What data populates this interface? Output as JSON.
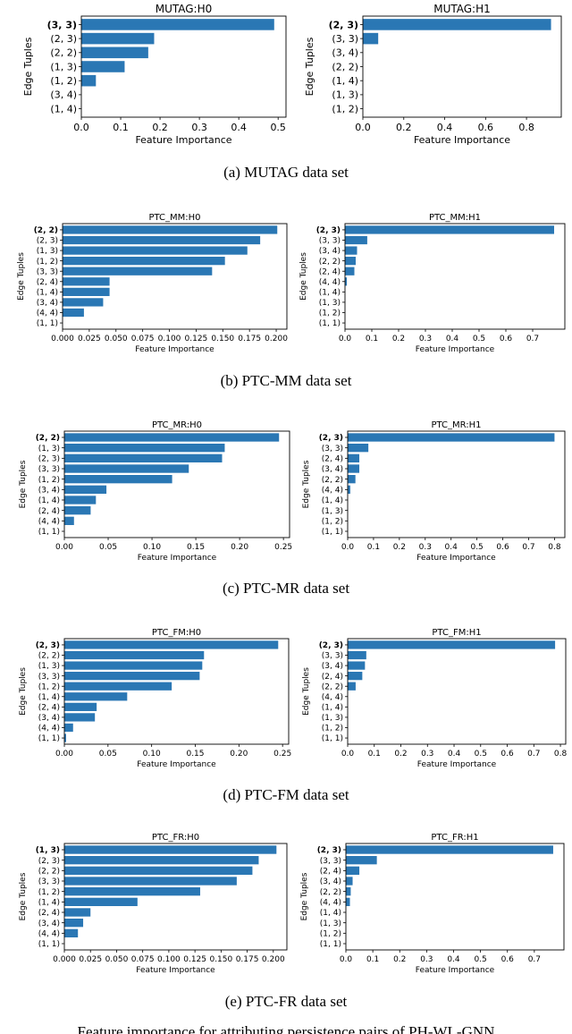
{
  "captions": [
    "(a) MUTAG data set",
    "(b) PTC-MM data set",
    "(c) PTC-MR data set",
    "(d) PTC-FM data set",
    "(e) PTC-FR data set"
  ],
  "footer_text": "Feature importance for attributing persistence pairs of PH-WL-GNN",
  "colors": {
    "bar": "#2a77b4",
    "axis": "#000000"
  },
  "chart_data": [
    {
      "type": "bar",
      "orientation": "horizontal",
      "title": "MUTAG:H0",
      "xlabel": "Feature Importance",
      "ylabel": "Edge Tuples",
      "categories": [
        "(3, 3)",
        "(2, 3)",
        "(2, 2)",
        "(1, 3)",
        "(1, 2)",
        "(3, 4)",
        "(1, 4)"
      ],
      "values": [
        0.49,
        0.185,
        0.17,
        0.11,
        0.037,
        0.0,
        0.0
      ],
      "bold_first": true,
      "xlim": [
        0,
        0.52
      ],
      "xticks": [
        "0.0",
        "0.1",
        "0.2",
        "0.3",
        "0.4",
        "0.5"
      ]
    },
    {
      "type": "bar",
      "orientation": "horizontal",
      "title": "MUTAG:H1",
      "xlabel": "Feature Importance",
      "ylabel": "Edge Tuples",
      "categories": [
        "(2, 3)",
        "(3, 3)",
        "(3, 4)",
        "(2, 2)",
        "(1, 4)",
        "(1, 3)",
        "(1, 2)"
      ],
      "values": [
        0.92,
        0.075,
        0.0,
        0.0,
        0.0,
        0.0,
        0.0
      ],
      "bold_first": true,
      "xlim": [
        0,
        0.97
      ],
      "xticks": [
        "0.0",
        "0.2",
        "0.4",
        "0.6",
        "0.8"
      ]
    },
    {
      "type": "bar",
      "orientation": "horizontal",
      "title": "PTC_MM:H0",
      "xlabel": "Feature Importance",
      "ylabel": "Edge Tuples",
      "categories": [
        "(2, 2)",
        "(2, 3)",
        "(1, 3)",
        "(1, 2)",
        "(3, 3)",
        "(2, 4)",
        "(1, 4)",
        "(3, 4)",
        "(4, 4)",
        "(1, 1)"
      ],
      "values": [
        0.201,
        0.185,
        0.173,
        0.152,
        0.14,
        0.044,
        0.044,
        0.038,
        0.02,
        0.0
      ],
      "bold_first": true,
      "xlim": [
        0,
        0.21
      ],
      "xticks": [
        "0.000",
        "0.025",
        "0.050",
        "0.075",
        "0.100",
        "0.125",
        "0.150",
        "0.175",
        "0.200"
      ]
    },
    {
      "type": "bar",
      "orientation": "horizontal",
      "title": "PTC_MM:H1",
      "xlabel": "Feature Importance",
      "ylabel": "Edge Tuples",
      "categories": [
        "(2, 3)",
        "(3, 3)",
        "(3, 4)",
        "(2, 2)",
        "(2, 4)",
        "(4, 4)",
        "(1, 4)",
        "(1, 3)",
        "(1, 2)",
        "(1, 1)"
      ],
      "values": [
        0.78,
        0.083,
        0.045,
        0.04,
        0.035,
        0.007,
        0.0,
        0.0,
        0.0,
        0.0
      ],
      "bold_first": true,
      "xlim": [
        0,
        0.82
      ],
      "xticks": [
        "0.0",
        "0.1",
        "0.2",
        "0.3",
        "0.4",
        "0.5",
        "0.6",
        "0.7"
      ]
    },
    {
      "type": "bar",
      "orientation": "horizontal",
      "title": "PTC_MR:H0",
      "xlabel": "Feature Importance",
      "ylabel": "Edge Tuples",
      "categories": [
        "(2, 2)",
        "(1, 3)",
        "(2, 3)",
        "(3, 3)",
        "(1, 2)",
        "(3, 4)",
        "(1, 4)",
        "(2, 4)",
        "(4, 4)",
        "(1, 1)"
      ],
      "values": [
        0.245,
        0.183,
        0.18,
        0.142,
        0.123,
        0.048,
        0.036,
        0.03,
        0.011,
        0.0
      ],
      "bold_first": true,
      "xlim": [
        0,
        0.257
      ],
      "xticks": [
        "0.00",
        "0.05",
        "0.10",
        "0.15",
        "0.20",
        "0.25"
      ]
    },
    {
      "type": "bar",
      "orientation": "horizontal",
      "title": "PTC_MR:H1",
      "xlabel": "Feature Importance",
      "ylabel": "Edge Tuples",
      "categories": [
        "(2, 3)",
        "(3, 3)",
        "(2, 4)",
        "(3, 4)",
        "(2, 2)",
        "(4, 4)",
        "(1, 4)",
        "(1, 3)",
        "(1, 2)",
        "(1, 1)"
      ],
      "values": [
        0.8,
        0.08,
        0.045,
        0.045,
        0.03,
        0.01,
        0.0,
        0.0,
        0.0,
        0.0
      ],
      "bold_first": true,
      "xlim": [
        0,
        0.84
      ],
      "xticks": [
        "0.0",
        "0.1",
        "0.2",
        "0.3",
        "0.4",
        "0.5",
        "0.6",
        "0.7",
        "0.8"
      ]
    },
    {
      "type": "bar",
      "orientation": "horizontal",
      "title": "PTC_FM:H0",
      "xlabel": "Feature Importance",
      "ylabel": "Edge Tuples",
      "categories": [
        "(2, 3)",
        "(2, 2)",
        "(1, 3)",
        "(3, 3)",
        "(1, 2)",
        "(1, 4)",
        "(2, 4)",
        "(3, 4)",
        "(4, 4)",
        "(1, 1)"
      ],
      "values": [
        0.245,
        0.16,
        0.158,
        0.155,
        0.123,
        0.072,
        0.037,
        0.035,
        0.01,
        0.002
      ],
      "bold_first": true,
      "xlim": [
        0,
        0.257
      ],
      "xticks": [
        "0.00",
        "0.05",
        "0.10",
        "0.15",
        "0.20",
        "0.25"
      ]
    },
    {
      "type": "bar",
      "orientation": "horizontal",
      "title": "PTC_FM:H1",
      "xlabel": "Feature Importance",
      "ylabel": "Edge Tuples",
      "categories": [
        "(2, 3)",
        "(3, 3)",
        "(3, 4)",
        "(2, 4)",
        "(2, 2)",
        "(4, 4)",
        "(1, 4)",
        "(1, 3)",
        "(1, 2)",
        "(1, 1)"
      ],
      "values": [
        0.78,
        0.07,
        0.065,
        0.055,
        0.03,
        0.0,
        0.0,
        0.0,
        0.0,
        0.0
      ],
      "bold_first": true,
      "xlim": [
        0,
        0.82
      ],
      "xticks": [
        "0.0",
        "0.1",
        "0.2",
        "0.3",
        "0.4",
        "0.5",
        "0.6",
        "0.7",
        "0.8"
      ]
    },
    {
      "type": "bar",
      "orientation": "horizontal",
      "title": "PTC_FR:H0",
      "xlabel": "Feature Importance",
      "ylabel": "Edge Tuples",
      "categories": [
        "(1, 3)",
        "(2, 3)",
        "(2, 2)",
        "(3, 3)",
        "(1, 2)",
        "(1, 4)",
        "(2, 4)",
        "(3, 4)",
        "(4, 4)",
        "(1, 1)"
      ],
      "values": [
        0.203,
        0.186,
        0.18,
        0.165,
        0.13,
        0.07,
        0.025,
        0.018,
        0.013,
        0.0
      ],
      "bold_first": true,
      "xlim": [
        0,
        0.213
      ],
      "xticks": [
        "0.000",
        "0.025",
        "0.050",
        "0.075",
        "0.100",
        "0.125",
        "0.150",
        "0.175",
        "0.200"
      ]
    },
    {
      "type": "bar",
      "orientation": "horizontal",
      "title": "PTC_FR:H1",
      "xlabel": "Feature Importance",
      "ylabel": "Edge Tuples",
      "categories": [
        "(2, 3)",
        "(3, 3)",
        "(2, 4)",
        "(3, 4)",
        "(2, 2)",
        "(4, 4)",
        "(1, 4)",
        "(1, 3)",
        "(1, 2)",
        "(1, 1)"
      ],
      "values": [
        0.77,
        0.115,
        0.05,
        0.025,
        0.018,
        0.015,
        0.0,
        0.0,
        0.0,
        0.0
      ],
      "bold_first": true,
      "xlim": [
        0,
        0.81
      ],
      "xticks": [
        "0.0",
        "0.1",
        "0.2",
        "0.3",
        "0.4",
        "0.5",
        "0.6",
        "0.7"
      ]
    }
  ]
}
